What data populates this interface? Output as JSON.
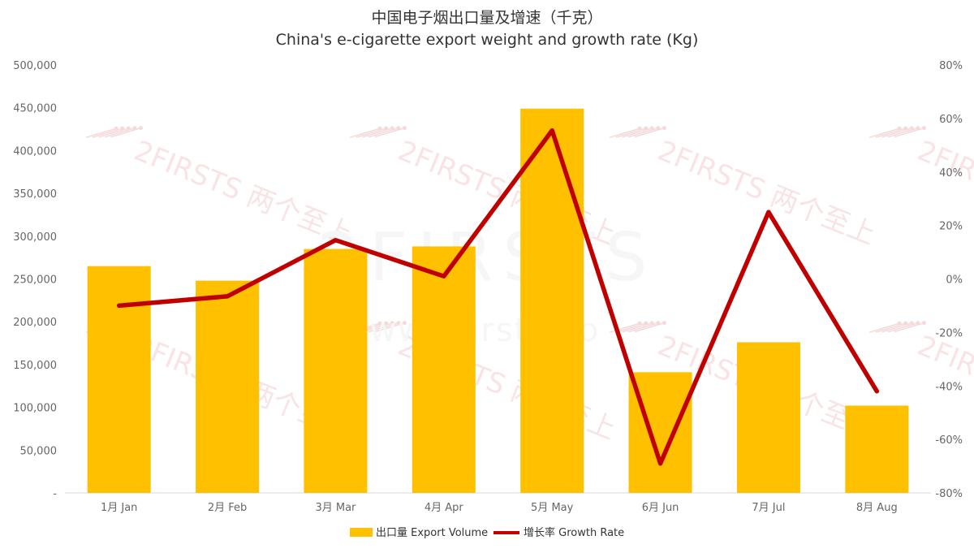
{
  "chart_data": {
    "type": "bar",
    "title": "中国电子烟出口量及增速（千克）",
    "subtitle": "China's e-cigarette export weight and growth rate (Kg)",
    "categories": [
      "1月 Jan",
      "2月 Feb",
      "3月 Mar",
      "4月 Apr",
      "5月 May",
      "6月 Jun",
      "7月 Jul",
      "8月 Aug"
    ],
    "series": [
      {
        "name": "出口量 Export Volume",
        "type": "bar",
        "axis": "left",
        "color": "#FFC000",
        "values": [
          265000,
          248000,
          285000,
          288000,
          449000,
          141000,
          176000,
          102000
        ]
      },
      {
        "name": "增长率 Growth Rate",
        "type": "line",
        "axis": "right",
        "color": "#C00000",
        "values": [
          -10,
          -6.5,
          14.5,
          1,
          55.5,
          -69,
          25,
          -42
        ]
      }
    ],
    "y_left": {
      "ylim": [
        0,
        500000
      ],
      "ticks": [
        0,
        50000,
        100000,
        150000,
        200000,
        250000,
        300000,
        350000,
        400000,
        450000,
        500000
      ],
      "tick_labels": [
        "-",
        "50,000",
        "100,000",
        "150,000",
        "200,000",
        "250,000",
        "300,000",
        "350,000",
        "400,000",
        "450,000",
        "500,000"
      ]
    },
    "y_right": {
      "ylim": [
        -80,
        80
      ],
      "ticks": [
        -80,
        -60,
        -40,
        -20,
        0,
        20,
        40,
        60,
        80
      ],
      "tick_labels": [
        "-80%",
        "-60%",
        "-40%",
        "-20%",
        "0%",
        "20%",
        "40%",
        "60%",
        "80%"
      ]
    },
    "grid": false,
    "legend": "bottom-center"
  },
  "watermark": {
    "brand": "2FIRSTS",
    "brand_cn": "两个至上",
    "url": "www.2firsts.co"
  }
}
